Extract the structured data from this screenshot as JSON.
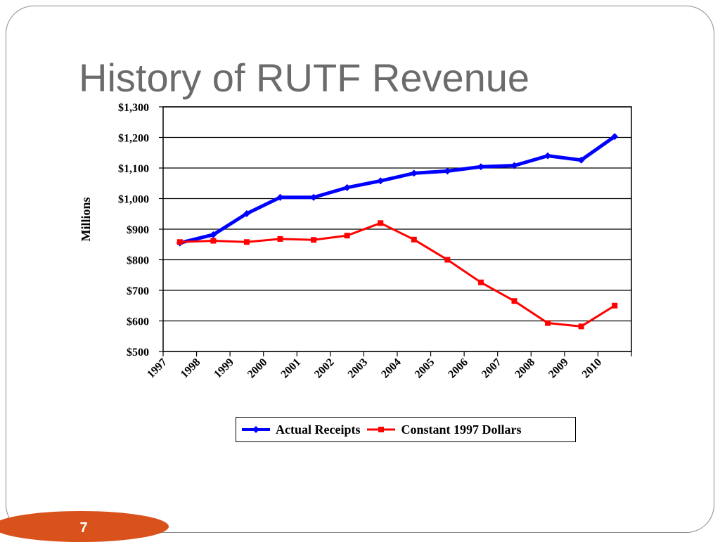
{
  "slide": {
    "title": "History of RUTF Revenue",
    "page_number": "7",
    "accent_color": "#d9521c"
  },
  "chart_data": {
    "type": "line",
    "title": "",
    "xlabel": "",
    "ylabel": "Millions",
    "categories": [
      "1997",
      "1998",
      "1999",
      "2000",
      "2001",
      "2002",
      "2003",
      "2004",
      "2005",
      "2006",
      "2007",
      "2008",
      "2009",
      "2010"
    ],
    "ylim": [
      500,
      1300
    ],
    "ytick_values": [
      500,
      600,
      700,
      800,
      900,
      1000,
      1100,
      1200,
      1300
    ],
    "ytick_labels": [
      "$500",
      "$600",
      "$700",
      "$800",
      "$900",
      "$1,000",
      "$1,100",
      "$1,200",
      "$1,300"
    ],
    "grid": true,
    "legend_position": "bottom",
    "series": [
      {
        "name": "Actual Receipts",
        "color": "#0000ff",
        "marker": "diamond",
        "values": [
          855,
          882,
          951,
          1004,
          1004,
          1036,
          1058,
          1083,
          1090,
          1104,
          1108,
          1140,
          1126,
          1203
        ]
      },
      {
        "name": "Constant 1997 Dollars",
        "color": "#ff0000",
        "marker": "square",
        "values": [
          858,
          862,
          858,
          868,
          865,
          879,
          920,
          866,
          800,
          726,
          665,
          593,
          582,
          650
        ]
      }
    ]
  }
}
